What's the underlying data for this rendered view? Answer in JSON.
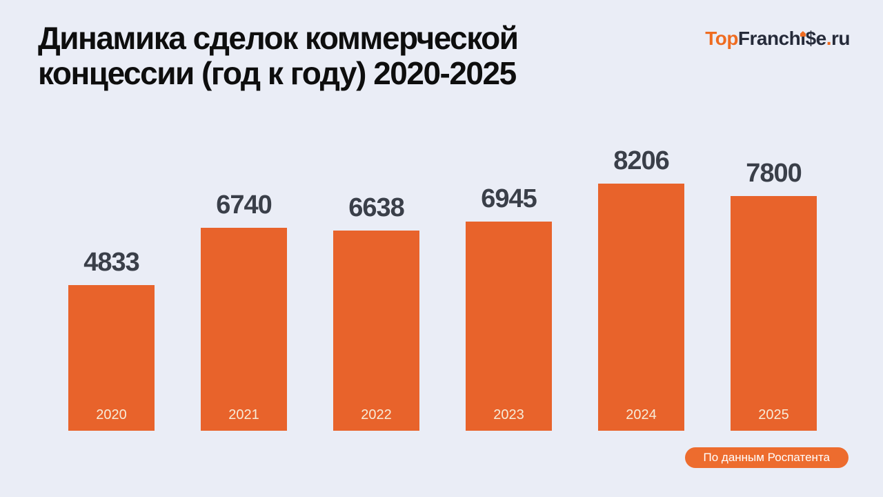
{
  "header": {
    "title_lines": [
      "Динамика сделок коммерческой",
      "концессии (год к году) 2020-2025"
    ]
  },
  "logo": {
    "part_top": "Top",
    "part_franch": "Franch",
    "part_i": "ı",
    "part_se": "$e",
    "part_dot": ".",
    "part_ru": "ru",
    "orange": "#ef6c21",
    "dark": "#262b3a"
  },
  "chart_data": {
    "type": "bar",
    "title": "Динамика сделок коммерческой концессии (год к году) 2020-2025",
    "categories": [
      "2020",
      "2021",
      "2022",
      "2023",
      "2024",
      "2025"
    ],
    "values": [
      4833,
      6740,
      6638,
      6945,
      8206,
      7800
    ],
    "xlabel": "",
    "ylabel": "",
    "ylim": [
      0,
      8206
    ],
    "grid": false,
    "legend": "none",
    "value_labels_position": "above-bars",
    "category_labels_position": "inside-bars-bottom",
    "bar_color": "#e8632b",
    "value_label_color": "#3a3f49",
    "category_label_color": "#f7ecd9"
  },
  "footer": {
    "source_label": "По данным Роспатента",
    "badge_color": "#ed6c2e",
    "text_color": "#ffffff"
  },
  "colors": {
    "background": "#eaedf6",
    "title": "#0e0e0e"
  }
}
